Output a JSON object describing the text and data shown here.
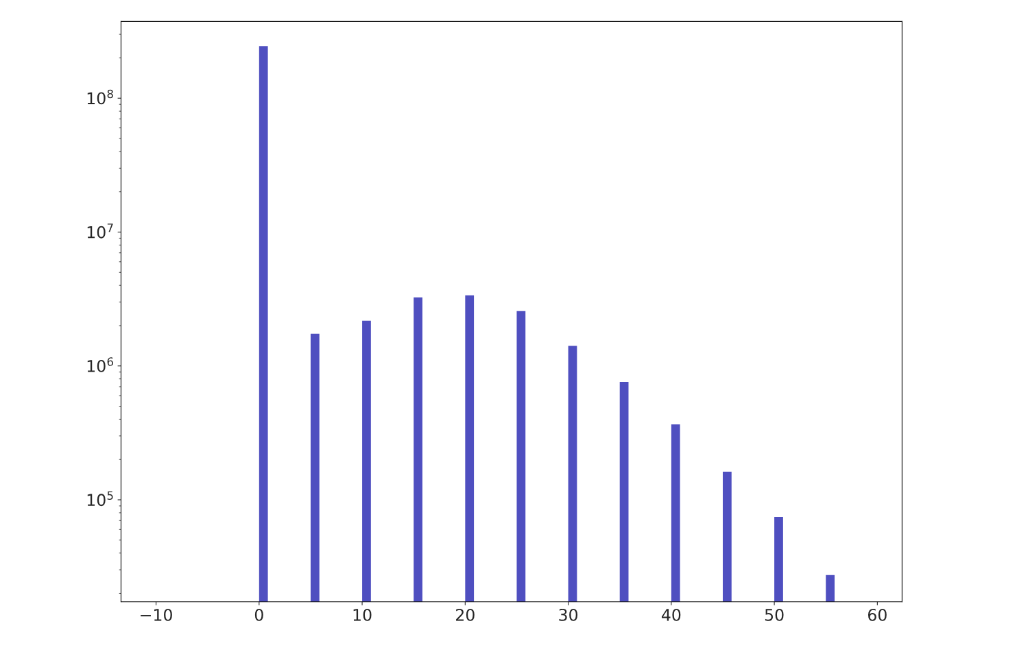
{
  "chart_data": {
    "type": "histogram",
    "bins": [
      0,
      0.85,
      5,
      5.85,
      10,
      10.85,
      15,
      15.85,
      20,
      20.85,
      25,
      25.85,
      30,
      30.85,
      35,
      35.85,
      40,
      40.85,
      45,
      45.85,
      50,
      50.85,
      55,
      55.85
    ],
    "values": [
      245000000,
      null,
      1740000,
      null,
      2180000,
      null,
      3250000,
      null,
      3370000,
      null,
      2570000,
      null,
      1410000,
      null,
      760000,
      null,
      366000,
      null,
      162000,
      null,
      74500,
      null,
      27400
    ],
    "color": "#4f4fc0",
    "log": "y",
    "xlim": [
      -13.4,
      62.4
    ],
    "xticks": [
      {
        "value": -10,
        "label": "−10"
      },
      0,
      10,
      20,
      30,
      40,
      50,
      60
    ],
    "ylim": [
      17300,
      374000000
    ],
    "yticks": [
      {
        "value": 100000,
        "label": "10$^{5}$"
      },
      {
        "value": 1000000,
        "label": "10$^{6}$"
      },
      {
        "value": 10000000,
        "label": "10$^{7}$"
      },
      {
        "value": 100000000,
        "label": "10$^{8}$"
      }
    ],
    "grid": false
  }
}
